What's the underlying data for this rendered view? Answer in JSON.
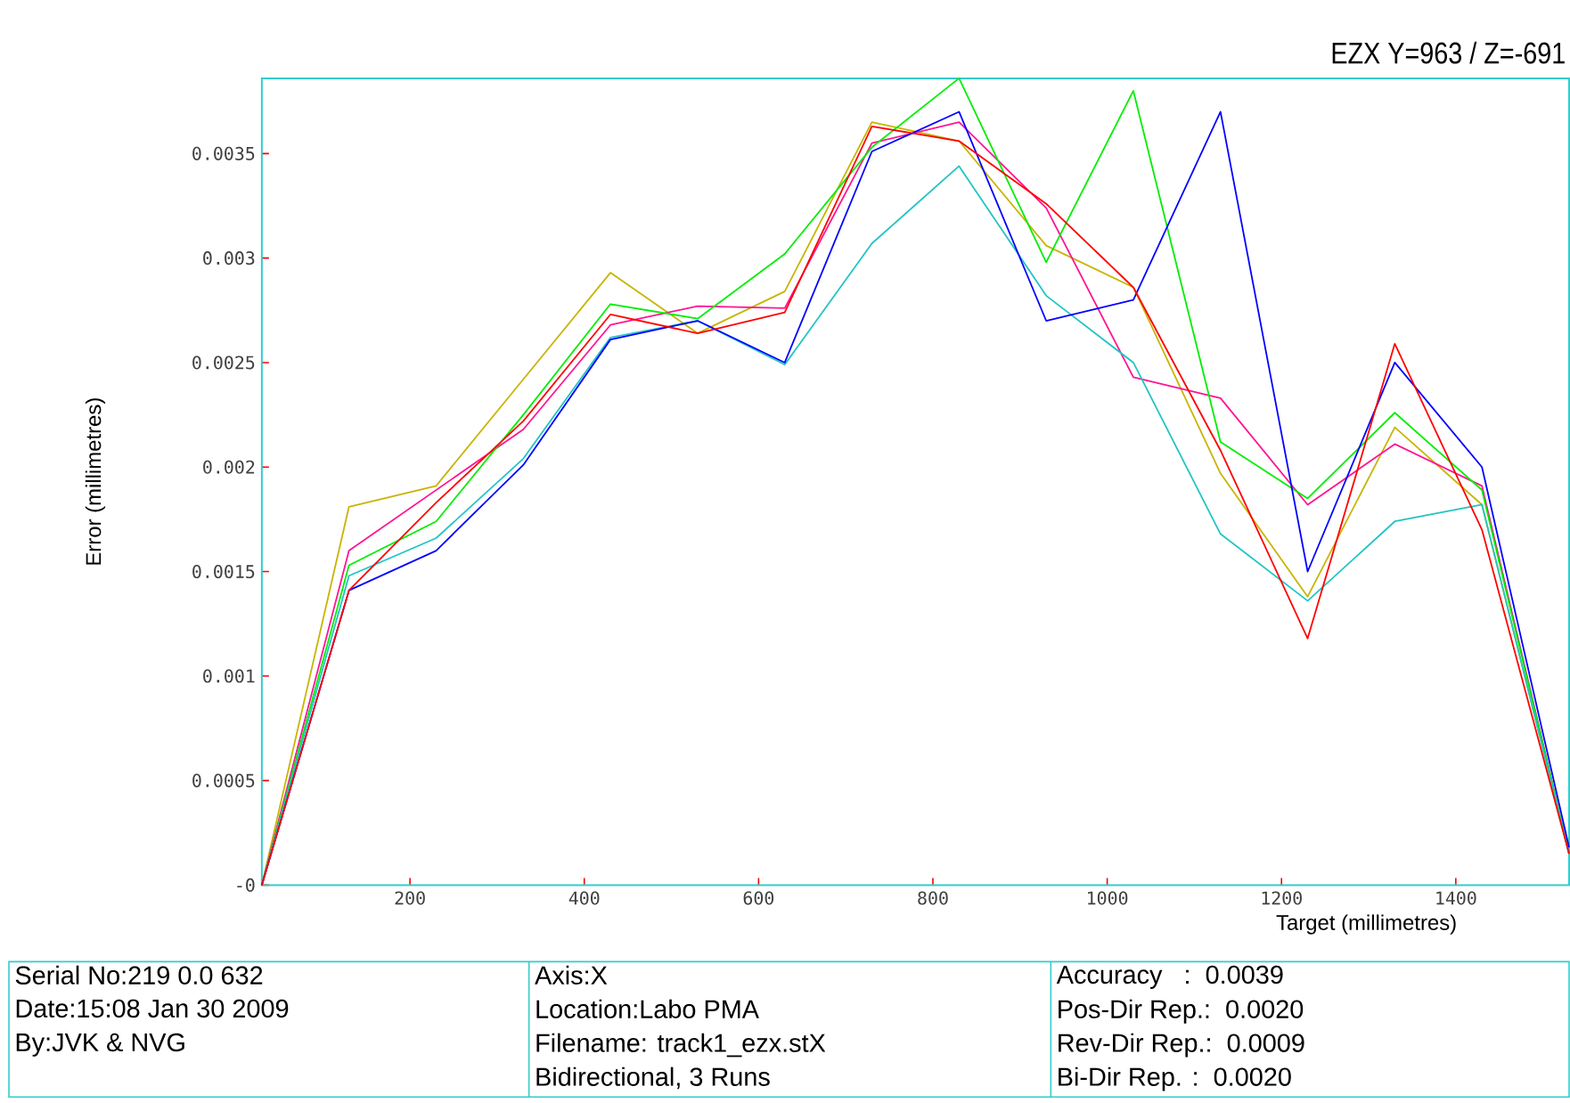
{
  "chart_data": {
    "type": "line",
    "title": "EZX Y=963 / Z=-691",
    "xlabel": "Target (millimetres)",
    "ylabel": "Error (millimetres)",
    "x": [
      30,
      130,
      230,
      330,
      430,
      530,
      630,
      730,
      830,
      930,
      1030,
      1130,
      1230,
      1330,
      1430,
      1530
    ],
    "xlim": [
      30,
      1530
    ],
    "xticks": [
      200,
      400,
      600,
      800,
      1000,
      1200,
      1400
    ],
    "ylim": [
      0,
      0.00386
    ],
    "yticks": [
      {
        "value": 0,
        "label": "-0"
      },
      0.0005,
      0.001,
      0.0015,
      0.002,
      0.0025,
      0.003,
      0.0035
    ],
    "series": [
      {
        "color": "#c8b400",
        "values": [
          0,
          0.00181,
          0.00191,
          0.00242,
          0.00293,
          0.00264,
          0.00284,
          0.00365,
          0.00356,
          0.00306,
          0.00286,
          0.00197,
          0.00138,
          0.00219,
          0.00182,
          0.00015
        ]
      },
      {
        "color": "#ff1493",
        "values": [
          0,
          0.0016,
          0.00189,
          0.00218,
          0.00268,
          0.00277,
          0.00276,
          0.00355,
          0.00365,
          0.00324,
          0.00243,
          0.00233,
          0.00182,
          0.00211,
          0.00191,
          0.00015
        ]
      },
      {
        "color": "#00ee00",
        "values": [
          0,
          0.00153,
          0.00174,
          0.00225,
          0.00278,
          0.00271,
          0.00302,
          0.00353,
          0.00386,
          0.00298,
          0.0038,
          0.00212,
          0.00185,
          0.00226,
          0.00189,
          0.00015
        ]
      },
      {
        "color": "#22c4c4",
        "values": [
          0,
          0.00148,
          0.00166,
          0.00204,
          0.00262,
          0.0027,
          0.00249,
          0.00307,
          0.00344,
          0.00282,
          0.0025,
          0.00168,
          0.00136,
          0.00174,
          0.00182,
          0.00015
        ]
      },
      {
        "color": "#0000ff",
        "values": [
          0,
          0.00141,
          0.0016,
          0.00201,
          0.00261,
          0.0027,
          0.0025,
          0.00351,
          0.0037,
          0.0027,
          0.0028,
          0.0037,
          0.0015,
          0.0025,
          0.002,
          0.00018
        ]
      },
      {
        "color": "#ff0000",
        "values": [
          0,
          0.00141,
          0.00183,
          0.00222,
          0.00273,
          0.00264,
          0.00274,
          0.00363,
          0.00356,
          0.00326,
          0.00286,
          0.00208,
          0.00118,
          0.00259,
          0.0017,
          0.00015
        ]
      }
    ],
    "annotations": [
      "Serial No:219 0.0 632",
      "Date:15:08 Jan 30 2009",
      "By:JVK & NVG",
      "Axis:X",
      "Location:Labo PMA",
      "Filename: track1_ezx.stX",
      "Bidirectional, 3 Runs",
      "Accuracy   :  0.0039",
      "Pos-Dir Rep.:  0.0020",
      "Rev-Dir Rep.:  0.0009",
      "Bi-Dir Rep. :  0.0020"
    ]
  }
}
